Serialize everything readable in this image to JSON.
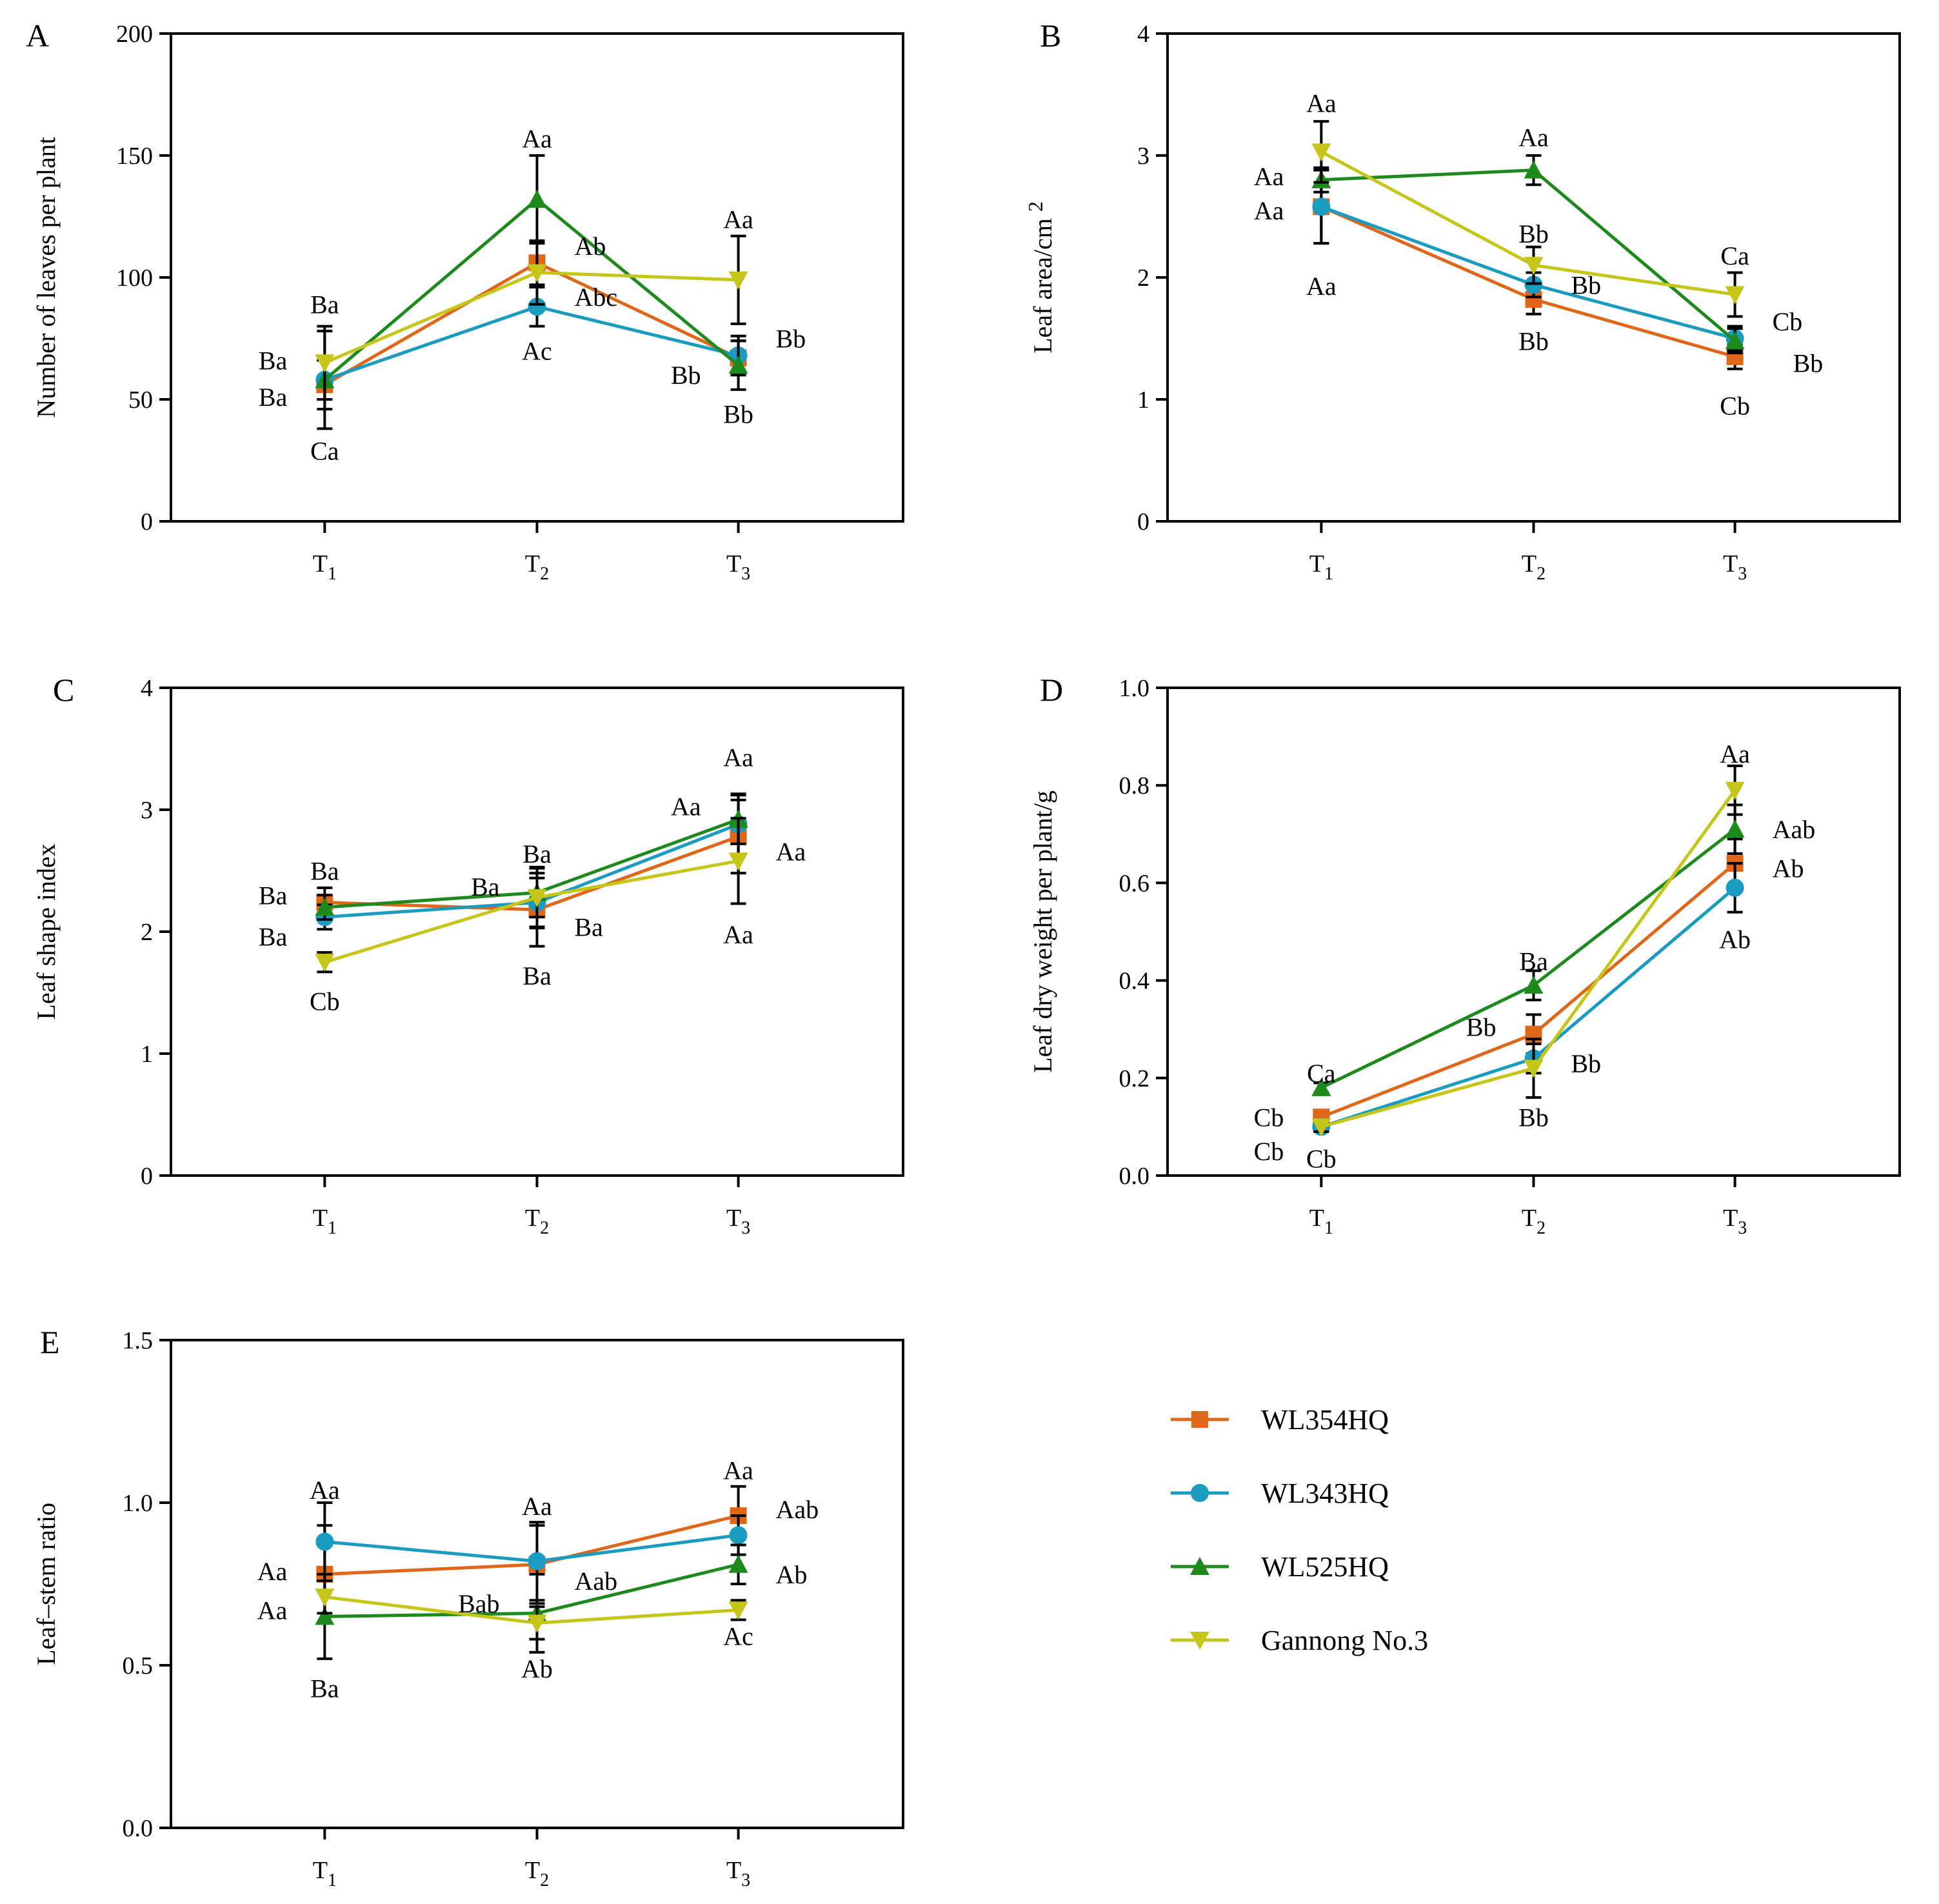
{
  "series_style": [
    {
      "name": "WL354HQ",
      "color": "#E0661A",
      "marker": "square"
    },
    {
      "name": "WL343HQ",
      "color": "#1A9BC0",
      "marker": "circle"
    },
    {
      "name": "WL525HQ",
      "color": "#1E8A1E",
      "marker": "triangle-up"
    },
    {
      "name": "Gannong No.3",
      "color": "#C5C51A",
      "marker": "triangle-down"
    }
  ],
  "legend": {
    "items": [
      "WL354HQ",
      "WL343HQ",
      "WL525HQ",
      "Gannong No.3"
    ]
  },
  "chart_data": [
    {
      "panel": "A",
      "type": "line",
      "categories": [
        "T1",
        "T2",
        "T3"
      ],
      "ylabel": "Number of leaves per plant",
      "ylim": [
        0,
        200
      ],
      "yticks": [
        0,
        50,
        100,
        150,
        200
      ],
      "series": [
        {
          "name": "WL354HQ",
          "values": [
            56,
            106,
            67
          ],
          "errors": [
            10,
            9,
            7
          ]
        },
        {
          "name": "WL343HQ",
          "values": [
            58,
            88,
            68
          ],
          "errors": [
            8,
            8,
            8
          ]
        },
        {
          "name": "WL525HQ",
          "values": [
            58,
            132,
            64
          ],
          "errors": [
            20,
            18,
            10
          ]
        },
        {
          "name": "Gannong No.3",
          "values": [
            65,
            102,
            99
          ],
          "errors": [
            15,
            13,
            18
          ]
        }
      ],
      "annotations": [
        {
          "text": "Ba",
          "cat": 0,
          "y": 89,
          "pos": "c"
        },
        {
          "text": "Ba",
          "cat": 0,
          "y": 66,
          "pos": "l"
        },
        {
          "text": "Ba",
          "cat": 0,
          "y": 51,
          "pos": "l"
        },
        {
          "text": "Ca",
          "cat": 0,
          "y": 29,
          "pos": "c"
        },
        {
          "text": "Aa",
          "cat": 1,
          "y": 157,
          "pos": "c"
        },
        {
          "text": "Ab",
          "cat": 1,
          "y": 113,
          "pos": "r"
        },
        {
          "text": "Abc",
          "cat": 1,
          "y": 92,
          "pos": "r"
        },
        {
          "text": "Ac",
          "cat": 1,
          "y": 70,
          "pos": "c"
        },
        {
          "text": "Aa",
          "cat": 2,
          "y": 124,
          "pos": "c"
        },
        {
          "text": "Bb",
          "cat": 2,
          "y": 75,
          "pos": "r"
        },
        {
          "text": "Bb",
          "cat": 2,
          "y": 60,
          "pos": "l"
        },
        {
          "text": "Bb",
          "cat": 2,
          "y": 44,
          "pos": "c"
        }
      ]
    },
    {
      "panel": "B",
      "type": "line",
      "categories": [
        "T1",
        "T2",
        "T3"
      ],
      "ylabel": "Leaf area/cm 2",
      "ylim": [
        0,
        4
      ],
      "yticks": [
        0,
        1,
        2,
        3,
        4
      ],
      "series": [
        {
          "name": "WL354HQ",
          "values": [
            2.58,
            1.82,
            1.35
          ],
          "errors": [
            0.3,
            0.12,
            0.1
          ]
        },
        {
          "name": "WL343HQ",
          "values": [
            2.58,
            1.94,
            1.5
          ],
          "errors": [
            0.3,
            0.1,
            0.1
          ]
        },
        {
          "name": "WL525HQ",
          "values": [
            2.8,
            2.88,
            1.48
          ],
          "errors": [
            0.1,
            0.12,
            0.1
          ]
        },
        {
          "name": "Gannong No.3",
          "values": [
            3.03,
            2.1,
            1.86
          ],
          "errors": [
            0.25,
            0.15,
            0.18
          ]
        }
      ],
      "annotations": [
        {
          "text": "Aa",
          "cat": 0,
          "y": 3.43,
          "pos": "c"
        },
        {
          "text": "Aa",
          "cat": 0,
          "y": 2.83,
          "pos": "l"
        },
        {
          "text": "Aa",
          "cat": 0,
          "y": 2.55,
          "pos": "l"
        },
        {
          "text": "Aa",
          "cat": 0,
          "y": 1.93,
          "pos": "c"
        },
        {
          "text": "Aa",
          "cat": 1,
          "y": 3.15,
          "pos": "c"
        },
        {
          "text": "Bb",
          "cat": 1,
          "y": 2.36,
          "pos": "c"
        },
        {
          "text": "Bb",
          "cat": 1,
          "y": 1.94,
          "pos": "r"
        },
        {
          "text": "Bb",
          "cat": 1,
          "y": 1.48,
          "pos": "c"
        },
        {
          "text": "Ca",
          "cat": 2,
          "y": 2.18,
          "pos": "c"
        },
        {
          "text": "Cb",
          "cat": 2,
          "y": 1.64,
          "pos": "r"
        },
        {
          "text": "Bb",
          "cat": 2,
          "y": 1.3,
          "pos": "r2"
        },
        {
          "text": "Cb",
          "cat": 2,
          "y": 0.95,
          "pos": "c"
        }
      ]
    },
    {
      "panel": "C",
      "type": "line",
      "categories": [
        "T1",
        "T2",
        "T3"
      ],
      "ylabel": "Leaf shape index",
      "ylim": [
        0,
        4
      ],
      "yticks": [
        0,
        1,
        2,
        3,
        4
      ],
      "series": [
        {
          "name": "WL354HQ",
          "values": [
            2.24,
            2.18,
            2.78
          ],
          "errors": [
            0.12,
            0.3,
            0.3
          ]
        },
        {
          "name": "WL343HQ",
          "values": [
            2.12,
            2.24,
            2.88
          ],
          "errors": [
            0.1,
            0.2,
            0.25
          ]
        },
        {
          "name": "WL525HQ",
          "values": [
            2.2,
            2.32,
            2.92
          ],
          "errors": [
            0.1,
            0.2,
            0.2
          ]
        },
        {
          "name": "Gannong No.3",
          "values": [
            1.75,
            2.28,
            2.58
          ],
          "errors": [
            0.08,
            0.25,
            0.35
          ]
        }
      ],
      "annotations": [
        {
          "text": "Ba",
          "cat": 0,
          "y": 2.5,
          "pos": "c"
        },
        {
          "text": "Ba",
          "cat": 0,
          "y": 2.3,
          "pos": "l"
        },
        {
          "text": "Ba",
          "cat": 0,
          "y": 1.96,
          "pos": "l"
        },
        {
          "text": "Cb",
          "cat": 0,
          "y": 1.43,
          "pos": "c"
        },
        {
          "text": "Ba",
          "cat": 1,
          "y": 2.64,
          "pos": "c"
        },
        {
          "text": "Ba",
          "cat": 1,
          "y": 2.37,
          "pos": "l"
        },
        {
          "text": "Ba",
          "cat": 1,
          "y": 2.04,
          "pos": "r"
        },
        {
          "text": "Ba",
          "cat": 1,
          "y": 1.64,
          "pos": "c"
        },
        {
          "text": "Aa",
          "cat": 2,
          "y": 3.43,
          "pos": "c"
        },
        {
          "text": "Aa",
          "cat": 2,
          "y": 3.03,
          "pos": "l"
        },
        {
          "text": "Aa",
          "cat": 2,
          "y": 2.66,
          "pos": "r"
        },
        {
          "text": "Aa",
          "cat": 2,
          "y": 1.98,
          "pos": "c"
        }
      ]
    },
    {
      "panel": "D",
      "type": "line",
      "categories": [
        "T1",
        "T2",
        "T3"
      ],
      "ylabel": "Leaf dry weight per plant/g",
      "ylim": [
        0,
        1.0
      ],
      "yticks": [
        0.0,
        0.2,
        0.4,
        0.6,
        0.8,
        1.0
      ],
      "series": [
        {
          "name": "WL354HQ",
          "values": [
            0.12,
            0.29,
            0.64
          ],
          "errors": [
            0.01,
            0.04,
            0.05
          ]
        },
        {
          "name": "WL343HQ",
          "values": [
            0.1,
            0.24,
            0.59
          ],
          "errors": [
            0.01,
            0.03,
            0.05
          ]
        },
        {
          "name": "WL525HQ",
          "values": [
            0.18,
            0.39,
            0.71
          ],
          "errors": [
            0.01,
            0.03,
            0.05
          ]
        },
        {
          "name": "Gannong No.3",
          "values": [
            0.1,
            0.22,
            0.79
          ],
          "errors": [
            0.01,
            0.06,
            0.05
          ]
        }
      ],
      "annotations": [
        {
          "text": "Ca",
          "cat": 0,
          "y": 0.21,
          "pos": "c"
        },
        {
          "text": "Cb",
          "cat": 0,
          "y": 0.12,
          "pos": "l"
        },
        {
          "text": "Cb",
          "cat": 0,
          "y": 0.05,
          "pos": "l2"
        },
        {
          "text": "Cb",
          "cat": 0,
          "y": 0.035,
          "pos": "c"
        },
        {
          "text": "Ba",
          "cat": 1,
          "y": 0.44,
          "pos": "c"
        },
        {
          "text": "Bb",
          "cat": 1,
          "y": 0.305,
          "pos": "l"
        },
        {
          "text": "Bb",
          "cat": 1,
          "y": 0.23,
          "pos": "r"
        },
        {
          "text": "Bb",
          "cat": 1,
          "y": 0.12,
          "pos": "c"
        },
        {
          "text": "Aa",
          "cat": 2,
          "y": 0.865,
          "pos": "c"
        },
        {
          "text": "Aab",
          "cat": 2,
          "y": 0.71,
          "pos": "r"
        },
        {
          "text": "Ab",
          "cat": 2,
          "y": 0.63,
          "pos": "r"
        },
        {
          "text": "Ab",
          "cat": 2,
          "y": 0.485,
          "pos": "c"
        }
      ]
    },
    {
      "panel": "E",
      "type": "line",
      "categories": [
        "T1",
        "T2",
        "T3"
      ],
      "ylabel": "Leaf–stem ratio",
      "ylim": [
        0,
        1.5
      ],
      "yticks": [
        0.0,
        0.5,
        1.0,
        1.5
      ],
      "series": [
        {
          "name": "WL354HQ",
          "values": [
            0.78,
            0.81,
            0.96
          ],
          "errors": [
            0.15,
            0.12,
            0.09
          ]
        },
        {
          "name": "WL343HQ",
          "values": [
            0.88,
            0.82,
            0.9
          ],
          "errors": [
            0.12,
            0.12,
            0.06
          ]
        },
        {
          "name": "WL525HQ",
          "values": [
            0.65,
            0.66,
            0.81
          ],
          "errors": [
            0.13,
            0.12,
            0.06
          ]
        },
        {
          "name": "Gannong No.3",
          "values": [
            0.71,
            0.63,
            0.67
          ],
          "errors": [
            0.05,
            0.05,
            0.03
          ]
        }
      ],
      "annotations": [
        {
          "text": "Aa",
          "cat": 0,
          "y": 1.04,
          "pos": "c"
        },
        {
          "text": "Aa",
          "cat": 0,
          "y": 0.79,
          "pos": "l"
        },
        {
          "text": "Aa",
          "cat": 0,
          "y": 0.67,
          "pos": "l"
        },
        {
          "text": "Ba",
          "cat": 0,
          "y": 0.43,
          "pos": "c"
        },
        {
          "text": "Aa",
          "cat": 1,
          "y": 0.99,
          "pos": "c"
        },
        {
          "text": "Aab",
          "cat": 1,
          "y": 0.76,
          "pos": "r"
        },
        {
          "text": "Bab",
          "cat": 1,
          "y": 0.69,
          "pos": "l"
        },
        {
          "text": "Ab",
          "cat": 1,
          "y": 0.49,
          "pos": "c"
        },
        {
          "text": "Aa",
          "cat": 2,
          "y": 1.1,
          "pos": "c"
        },
        {
          "text": "Aab",
          "cat": 2,
          "y": 0.98,
          "pos": "r"
        },
        {
          "text": "Ab",
          "cat": 2,
          "y": 0.78,
          "pos": "r"
        },
        {
          "text": "Ac",
          "cat": 2,
          "y": 0.59,
          "pos": "c"
        }
      ]
    }
  ]
}
